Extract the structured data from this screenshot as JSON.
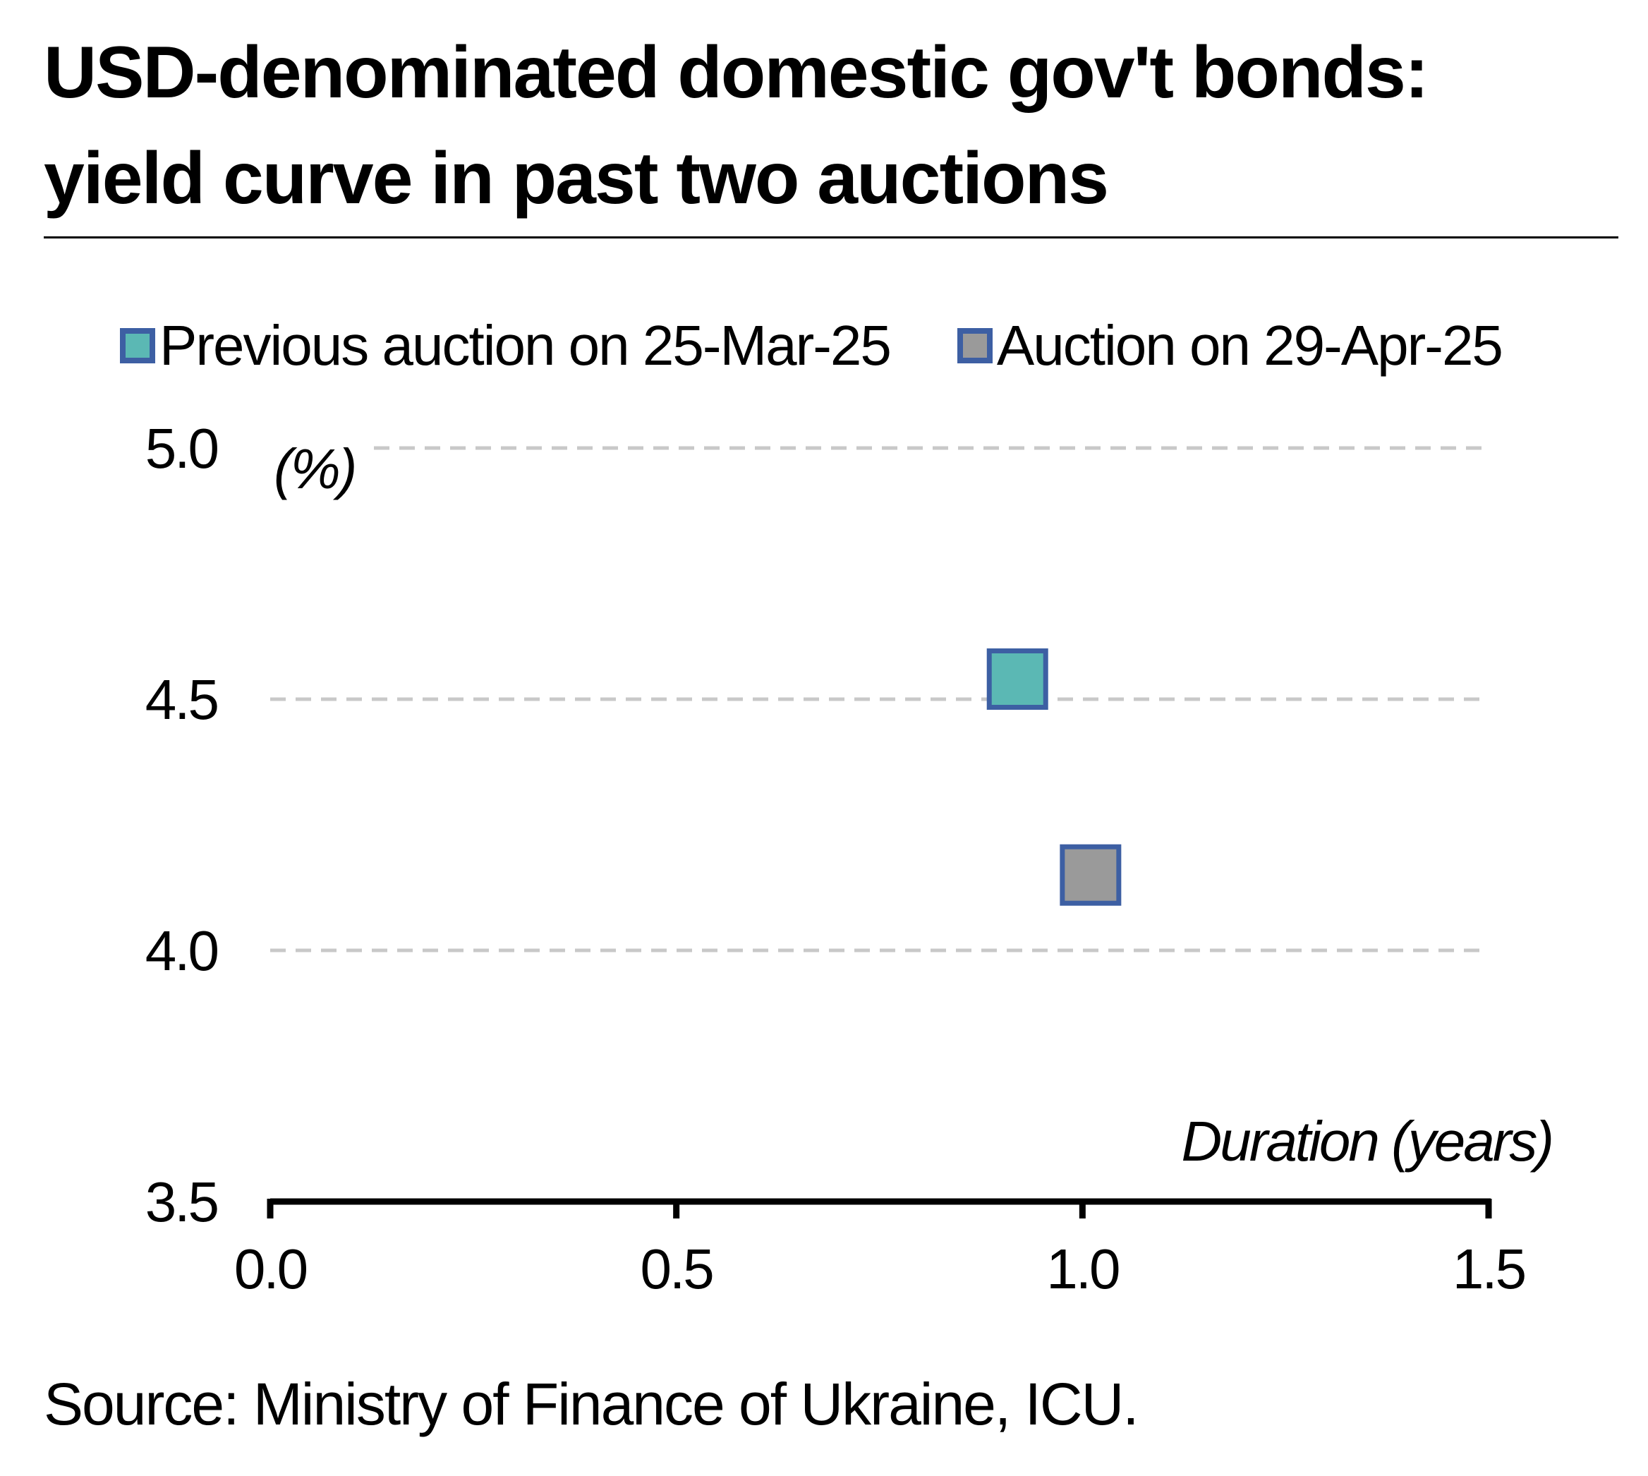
{
  "title_line1": "USD-denominated domestic gov't bonds:",
  "title_line2": "yield curve in past two auctions",
  "source": "Source: Ministry of Finance of Ukraine, ICU.",
  "colors": {
    "series_previous": "#5bb8b4",
    "series_current": "#9a9a9a",
    "marker_border": "#3d5fa3",
    "grid": "#c8c8c8",
    "axis": "#000000"
  },
  "chart_data": {
    "type": "scatter",
    "title": "USD-denominated domestic gov't bonds: yield curve in past two auctions",
    "xlabel": "Duration (years)",
    "ylabel": "(%)",
    "xlim": [
      0.0,
      1.5
    ],
    "ylim": [
      3.5,
      5.0
    ],
    "x_ticks": [
      "0.0",
      "0.5",
      "1.0",
      "1.5"
    ],
    "y_ticks": [
      "3.5",
      "4.0",
      "4.5",
      "5.0"
    ],
    "grid": true,
    "legend_position": "top-left",
    "series": [
      {
        "name": "Previous auction on 25-Mar-25",
        "points": [
          {
            "x": 0.92,
            "y": 4.54
          }
        ]
      },
      {
        "name": "Auction on 29-Apr-25",
        "points": [
          {
            "x": 1.01,
            "y": 4.15
          }
        ]
      }
    ]
  }
}
